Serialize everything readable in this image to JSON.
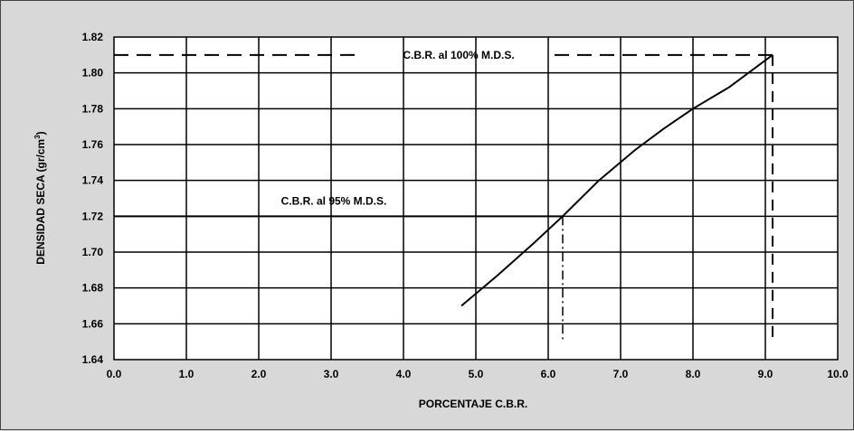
{
  "chart_data": {
    "type": "line",
    "xlabel": "PORCENTAJE C.B.R.",
    "ylabel_main": "DENSIDAD SECA (gr/cm",
    "ylabel_sup": "3",
    "ylabel_close": ")",
    "xlim": [
      0,
      10
    ],
    "ylim": [
      1.64,
      1.82
    ],
    "x_ticks": [
      "0.0",
      "1.0",
      "2.0",
      "3.0",
      "4.0",
      "5.0",
      "6.0",
      "7.0",
      "8.0",
      "9.0",
      "10.0"
    ],
    "y_ticks": [
      "1.64",
      "1.66",
      "1.68",
      "1.70",
      "1.72",
      "1.74",
      "1.76",
      "1.78",
      "1.80",
      "1.82"
    ],
    "grid": true,
    "series": [
      {
        "x": [
          4.8,
          5.3,
          5.8,
          6.2,
          6.7,
          7.2,
          7.6,
          8.0,
          8.5,
          9.1
        ],
        "y": [
          1.67,
          1.687,
          1.705,
          1.72,
          1.74,
          1.757,
          1.769,
          1.78,
          1.792,
          1.81
        ]
      }
    ],
    "annotations": [
      {
        "label": "C.B.R. al 100% M.D.S.",
        "x": 9.1,
        "y": 1.81
      },
      {
        "label": "C.B.R. al 95% M.D.S.",
        "x": 6.2,
        "y": 1.72
      }
    ]
  }
}
